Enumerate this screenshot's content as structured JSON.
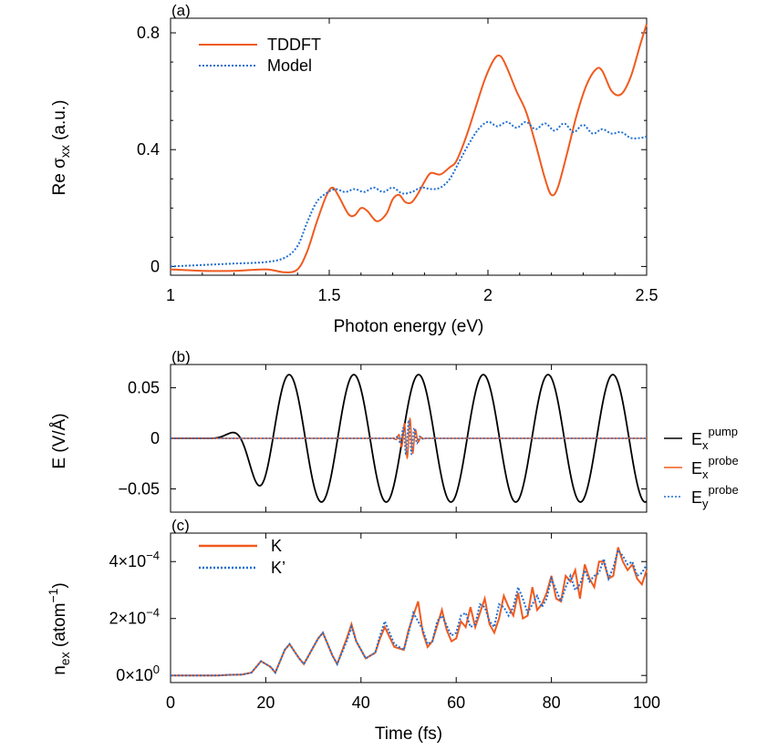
{
  "figure": {
    "title": ""
  },
  "chart_data": [
    {
      "panel": "(a)",
      "type": "line",
      "xlabel": "Photon energy (eV)",
      "ylabel": "Re σxx (a.u.)",
      "xlim": [
        1.0,
        2.5
      ],
      "ylim": [
        -0.03,
        0.85
      ],
      "x_ticks": [
        1,
        1.5,
        2,
        2.5
      ],
      "x_tick_labels": [
        "1",
        "1.5",
        "2",
        "2.5"
      ],
      "y_ticks": [
        0,
        0.4,
        0.8
      ],
      "y_tick_labels": [
        "0",
        "0.4",
        "0.8"
      ],
      "legend_position": "top-left",
      "grid": false,
      "series": [
        {
          "name": "TDDFT",
          "color": "#f05a1e",
          "style": "solid",
          "points": [
            [
              1.0,
              -0.01
            ],
            [
              1.1,
              -0.015
            ],
            [
              1.2,
              -0.015
            ],
            [
              1.3,
              -0.01
            ],
            [
              1.36,
              -0.02
            ],
            [
              1.4,
              -0.01
            ],
            [
              1.43,
              0.05
            ],
            [
              1.46,
              0.15
            ],
            [
              1.49,
              0.24
            ],
            [
              1.51,
              0.27
            ],
            [
              1.53,
              0.24
            ],
            [
              1.56,
              0.18
            ],
            [
              1.58,
              0.175
            ],
            [
              1.6,
              0.2
            ],
            [
              1.62,
              0.19
            ],
            [
              1.65,
              0.155
            ],
            [
              1.68,
              0.18
            ],
            [
              1.7,
              0.23
            ],
            [
              1.72,
              0.245
            ],
            [
              1.74,
              0.22
            ],
            [
              1.76,
              0.22
            ],
            [
              1.78,
              0.25
            ],
            [
              1.8,
              0.29
            ],
            [
              1.82,
              0.32
            ],
            [
              1.85,
              0.315
            ],
            [
              1.88,
              0.34
            ],
            [
              1.9,
              0.36
            ],
            [
              1.93,
              0.44
            ],
            [
              1.96,
              0.54
            ],
            [
              1.99,
              0.64
            ],
            [
              2.02,
              0.71
            ],
            [
              2.04,
              0.72
            ],
            [
              2.06,
              0.68
            ],
            [
              2.09,
              0.6
            ],
            [
              2.12,
              0.53
            ],
            [
              2.15,
              0.42
            ],
            [
              2.18,
              0.3
            ],
            [
              2.2,
              0.245
            ],
            [
              2.22,
              0.27
            ],
            [
              2.25,
              0.39
            ],
            [
              2.28,
              0.52
            ],
            [
              2.31,
              0.62
            ],
            [
              2.34,
              0.675
            ],
            [
              2.36,
              0.67
            ],
            [
              2.39,
              0.6
            ],
            [
              2.42,
              0.59
            ],
            [
              2.45,
              0.65
            ],
            [
              2.48,
              0.76
            ],
            [
              2.5,
              0.83
            ]
          ]
        },
        {
          "name": "Model",
          "color": "#1f6fd1",
          "style": "dotted",
          "points": [
            [
              1.0,
              0.0
            ],
            [
              1.1,
              0.005
            ],
            [
              1.2,
              0.01
            ],
            [
              1.3,
              0.015
            ],
            [
              1.36,
              0.03
            ],
            [
              1.4,
              0.07
            ],
            [
              1.43,
              0.15
            ],
            [
              1.46,
              0.22
            ],
            [
              1.49,
              0.25
            ],
            [
              1.52,
              0.265
            ],
            [
              1.55,
              0.255
            ],
            [
              1.58,
              0.265
            ],
            [
              1.61,
              0.255
            ],
            [
              1.64,
              0.27
            ],
            [
              1.67,
              0.255
            ],
            [
              1.7,
              0.27
            ],
            [
              1.73,
              0.25
            ],
            [
              1.76,
              0.255
            ],
            [
              1.79,
              0.27
            ],
            [
              1.82,
              0.265
            ],
            [
              1.85,
              0.27
            ],
            [
              1.88,
              0.3
            ],
            [
              1.91,
              0.36
            ],
            [
              1.94,
              0.42
            ],
            [
              1.97,
              0.47
            ],
            [
              2.0,
              0.495
            ],
            [
              2.03,
              0.48
            ],
            [
              2.06,
              0.495
            ],
            [
              2.09,
              0.475
            ],
            [
              2.12,
              0.495
            ],
            [
              2.15,
              0.47
            ],
            [
              2.18,
              0.49
            ],
            [
              2.21,
              0.465
            ],
            [
              2.24,
              0.49
            ],
            [
              2.27,
              0.46
            ],
            [
              2.3,
              0.485
            ],
            [
              2.33,
              0.455
            ],
            [
              2.36,
              0.47
            ],
            [
              2.39,
              0.455
            ],
            [
              2.42,
              0.46
            ],
            [
              2.45,
              0.44
            ],
            [
              2.48,
              0.44
            ],
            [
              2.5,
              0.445
            ]
          ]
        }
      ]
    },
    {
      "panel": "(b)",
      "type": "line",
      "xlabel": "",
      "ylabel": "E (V/Å)",
      "xlim": [
        0,
        100
      ],
      "ylim": [
        -0.073,
        0.073
      ],
      "x_ticks": [
        0,
        20,
        40,
        60,
        80,
        100
      ],
      "y_ticks": [
        0.05,
        0,
        -0.05
      ],
      "y_tick_labels": [
        "0.05",
        "0",
        "−0.05"
      ],
      "legend_position": "right",
      "series": [
        {
          "name": "Ex",
          "superscript": "pump",
          "color": "#000000",
          "style": "solid"
        },
        {
          "name": "Ex",
          "superscript": "probe",
          "color": "#f05a1e",
          "style": "solid"
        },
        {
          "name": "Ey",
          "superscript": "probe",
          "color": "#1f6fd1",
          "style": "dotted"
        }
      ],
      "pump": {
        "amplitude": 0.063,
        "period_fs": 13.6,
        "peak_time_fs": 24.9,
        "first_peak_time_fs": 11.3,
        "first_peak_value": 0.013
      },
      "probe": {
        "amplitude": 0.02,
        "center_fs": 50,
        "width_fs": 1.6,
        "period_fs": 1.2
      }
    },
    {
      "panel": "(c)",
      "type": "line",
      "xlabel": "Time (fs)",
      "ylabel": "nex (atom−1)",
      "xlim": [
        0,
        100
      ],
      "ylim": [
        -2.5e-05,
        0.0005
      ],
      "x_ticks": [
        0,
        20,
        40,
        60,
        80,
        100
      ],
      "x_tick_labels": [
        "0",
        "20",
        "40",
        "60",
        "80",
        "100"
      ],
      "y_ticks": [
        0,
        0.0002,
        0.0004
      ],
      "y_tick_labels": [
        {
          "mantissa": "0×10",
          "exp": "0"
        },
        {
          "mantissa": "2×10",
          "exp": "−4"
        },
        {
          "mantissa": "4×10",
          "exp": "−4"
        }
      ],
      "legend_position": "top-left",
      "series": [
        {
          "name": "K",
          "color": "#f05a1e",
          "style": "solid",
          "points": [
            [
              0,
              0
            ],
            [
              10,
              0
            ],
            [
              12,
              2e-06
            ],
            [
              15,
              3e-06
            ],
            [
              17,
              1e-05
            ],
            [
              19,
              5e-05
            ],
            [
              21,
              3e-05
            ],
            [
              22,
              1e-05
            ],
            [
              24,
              9e-05
            ],
            [
              25,
              0.00011
            ],
            [
              27,
              6e-05
            ],
            [
              28,
              4e-05
            ],
            [
              31,
              0.00013
            ],
            [
              32,
              0.00015
            ],
            [
              34,
              7e-05
            ],
            [
              35,
              4e-05
            ],
            [
              37,
              0.00013
            ],
            [
              38,
              0.00018
            ],
            [
              39,
              0.00012
            ],
            [
              41,
              6e-05
            ],
            [
              43,
              8e-05
            ],
            [
              44,
              0.00013
            ],
            [
              45,
              0.00017
            ],
            [
              47,
              0.0001
            ],
            [
              49,
              9e-05
            ],
            [
              50,
              0.00016
            ],
            [
              52,
              0.00026
            ],
            [
              53,
              0.00015
            ],
            [
              54,
              0.0001
            ],
            [
              55,
              0.00012
            ],
            [
              57,
              0.00023
            ],
            [
              58,
              0.00016
            ],
            [
              59,
              0.00012
            ],
            [
              60,
              0.00013
            ],
            [
              61,
              0.00019
            ],
            [
              62,
              0.00017
            ],
            [
              63,
              0.00024
            ],
            [
              64,
              0.00017
            ],
            [
              66,
              0.00027
            ],
            [
              67,
              0.00018
            ],
            [
              68,
              0.00015
            ],
            [
              69,
              0.0002
            ],
            [
              70,
              0.00028
            ],
            [
              71,
              0.00024
            ],
            [
              72,
              0.00021
            ],
            [
              73,
              0.00029
            ],
            [
              74,
              0.0002
            ],
            [
              75,
              0.00021
            ],
            [
              76,
              0.00031
            ],
            [
              77,
              0.00023
            ],
            [
              78,
              0.00025
            ],
            [
              79,
              0.00029
            ],
            [
              80,
              0.00035
            ],
            [
              81,
              0.00027
            ],
            [
              82,
              0.00026
            ],
            [
              83,
              0.00035
            ],
            [
              84,
              0.00033
            ],
            [
              85,
              0.00037
            ],
            [
              86,
              0.00027
            ],
            [
              87,
              0.00039
            ],
            [
              88,
              0.00034
            ],
            [
              89,
              0.00031
            ],
            [
              90,
              0.0004
            ],
            [
              91,
              0.0004
            ],
            [
              92,
              0.00034
            ],
            [
              93,
              0.00035
            ],
            [
              94,
              0.00045
            ],
            [
              95,
              0.0004
            ],
            [
              96,
              0.00037
            ],
            [
              97,
              0.00039
            ],
            [
              98,
              0.00034
            ],
            [
              99,
              0.00032
            ],
            [
              100,
              0.00037
            ]
          ]
        },
        {
          "name": "K’",
          "color": "#1f6fd1",
          "style": "dotted",
          "points": [
            [
              0,
              0
            ],
            [
              10,
              0
            ],
            [
              12,
              2e-06
            ],
            [
              15,
              3e-06
            ],
            [
              17,
              1e-05
            ],
            [
              19,
              5e-05
            ],
            [
              21,
              3e-05
            ],
            [
              22,
              1e-05
            ],
            [
              24,
              9e-05
            ],
            [
              25,
              0.00011
            ],
            [
              27,
              6e-05
            ],
            [
              28,
              4e-05
            ],
            [
              31,
              0.00013
            ],
            [
              32,
              0.00015
            ],
            [
              34,
              7e-05
            ],
            [
              35,
              4e-05
            ],
            [
              37,
              0.00012
            ],
            [
              38,
              0.00017
            ],
            [
              39,
              0.00012
            ],
            [
              41,
              6e-05
            ],
            [
              43,
              8e-05
            ],
            [
              44,
              0.00014
            ],
            [
              45,
              0.00019
            ],
            [
              47,
              0.00011
            ],
            [
              49,
              9e-05
            ],
            [
              50,
              0.00015
            ],
            [
              51,
              0.00022
            ],
            [
              53,
              0.00016
            ],
            [
              54,
              0.00011
            ],
            [
              55,
              0.00012
            ],
            [
              56,
              0.00019
            ],
            [
              57,
              0.00021
            ],
            [
              59,
              0.00014
            ],
            [
              60,
              0.00015
            ],
            [
              61,
              0.00021
            ],
            [
              62,
              0.00022
            ],
            [
              63,
              0.00017
            ],
            [
              64,
              0.00018
            ],
            [
              65,
              0.00025
            ],
            [
              66,
              0.00024
            ],
            [
              67,
              0.00019
            ],
            [
              68,
              0.00017
            ],
            [
              69,
              0.00025
            ],
            [
              70,
              0.00024
            ],
            [
              71,
              0.00021
            ],
            [
              72,
              0.00024
            ],
            [
              73,
              0.00031
            ],
            [
              74,
              0.00027
            ],
            [
              75,
              0.00022
            ],
            [
              76,
              0.00025
            ],
            [
              77,
              0.00028
            ],
            [
              78,
              0.00024
            ],
            [
              79,
              0.00027
            ],
            [
              80,
              0.00034
            ],
            [
              81,
              0.0003
            ],
            [
              82,
              0.00026
            ],
            [
              83,
              0.00031
            ],
            [
              84,
              0.00035
            ],
            [
              85,
              0.0003
            ],
            [
              86,
              0.00032
            ],
            [
              87,
              0.00037
            ],
            [
              88,
              0.00033
            ],
            [
              89,
              0.00035
            ],
            [
              90,
              0.00036
            ],
            [
              91,
              0.00041
            ],
            [
              92,
              0.00034
            ],
            [
              93,
              0.00038
            ],
            [
              94,
              0.00044
            ],
            [
              95,
              0.00042
            ],
            [
              96,
              0.00039
            ],
            [
              97,
              0.0004
            ],
            [
              98,
              0.00035
            ],
            [
              99,
              0.00036
            ],
            [
              100,
              0.00039
            ]
          ]
        }
      ]
    }
  ]
}
